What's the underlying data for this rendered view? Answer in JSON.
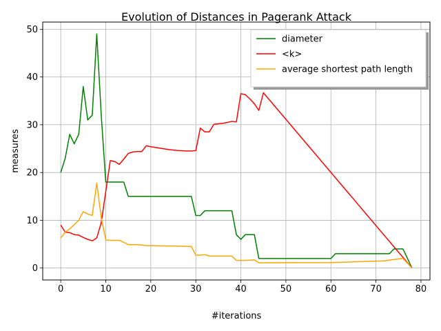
{
  "chart_data": {
    "type": "line",
    "title": "Evolution of Distances in Pagerank Attack",
    "xlabel": "#iterations",
    "ylabel": "measures",
    "xlim": [
      -4,
      82
    ],
    "ylim": [
      -2.5,
      51.5
    ],
    "xticks": [
      0,
      10,
      20,
      30,
      40,
      50,
      60,
      70,
      80
    ],
    "yticks": [
      0,
      10,
      20,
      30,
      40,
      50
    ],
    "grid": true,
    "legend_position": "upper-right",
    "series": [
      {
        "name": "diameter",
        "color": "#008000",
        "points": [
          [
            0,
            20
          ],
          [
            1,
            23
          ],
          [
            2,
            28
          ],
          [
            3,
            26
          ],
          [
            4,
            28
          ],
          [
            5,
            38
          ],
          [
            6,
            31
          ],
          [
            7,
            32
          ],
          [
            8,
            49
          ],
          [
            9,
            32
          ],
          [
            10,
            18
          ],
          [
            14,
            18
          ],
          [
            15,
            15
          ],
          [
            29,
            15
          ],
          [
            30,
            11
          ],
          [
            31,
            11
          ],
          [
            32,
            12
          ],
          [
            38,
            12
          ],
          [
            39,
            7
          ],
          [
            40,
            6
          ],
          [
            41,
            7
          ],
          [
            43,
            7
          ],
          [
            44,
            2
          ],
          [
            60,
            2
          ],
          [
            61,
            3
          ],
          [
            73,
            3
          ],
          [
            74,
            4
          ],
          [
            76,
            4
          ],
          [
            78,
            0
          ]
        ]
      },
      {
        "name": "<k>",
        "color": "#ff0000",
        "points": [
          [
            0,
            9
          ],
          [
            1,
            7.5
          ],
          [
            2,
            7.4
          ],
          [
            3,
            7
          ],
          [
            4,
            6.9
          ],
          [
            5,
            6.4
          ],
          [
            6,
            6
          ],
          [
            7,
            5.7
          ],
          [
            8,
            6.3
          ],
          [
            9,
            9.5
          ],
          [
            10,
            16
          ],
          [
            11,
            22.5
          ],
          [
            12,
            22.3
          ],
          [
            13,
            21.7
          ],
          [
            14,
            22.8
          ],
          [
            15,
            24
          ],
          [
            16,
            24.3
          ],
          [
            17,
            24.4
          ],
          [
            18,
            24.4
          ],
          [
            19,
            25.6
          ],
          [
            20,
            25.4
          ],
          [
            22,
            25.1
          ],
          [
            24,
            24.8
          ],
          [
            26,
            24.6
          ],
          [
            28,
            24.5
          ],
          [
            29,
            24.5
          ],
          [
            30,
            24.6
          ],
          [
            31,
            29.3
          ],
          [
            32,
            28.5
          ],
          [
            33,
            28.5
          ],
          [
            34,
            30.1
          ],
          [
            35,
            30.2
          ],
          [
            36,
            30.3
          ],
          [
            38,
            30.7
          ],
          [
            39,
            30.6
          ],
          [
            40,
            36.5
          ],
          [
            41,
            36.3
          ],
          [
            42,
            35.4
          ],
          [
            43,
            34.4
          ],
          [
            44,
            33
          ],
          [
            45,
            36.7
          ],
          [
            78,
            0
          ]
        ]
      },
      {
        "name": "average shortest path length",
        "color": "#ffa500",
        "points": [
          [
            0,
            6.3
          ],
          [
            1,
            7.5
          ],
          [
            2,
            8.2
          ],
          [
            3,
            9.1
          ],
          [
            4,
            10
          ],
          [
            5,
            11.8
          ],
          [
            6,
            11.3
          ],
          [
            7,
            11
          ],
          [
            8,
            17.8
          ],
          [
            9,
            10.5
          ],
          [
            10,
            5.9
          ],
          [
            11,
            5.8
          ],
          [
            13,
            5.8
          ],
          [
            14,
            5.4
          ],
          [
            15,
            4.9
          ],
          [
            17,
            4.9
          ],
          [
            19,
            4.7
          ],
          [
            25,
            4.6
          ],
          [
            29,
            4.5
          ],
          [
            30,
            2.7
          ],
          [
            31,
            2.7
          ],
          [
            32,
            2.8
          ],
          [
            33,
            2.5
          ],
          [
            38,
            2.5
          ],
          [
            39,
            1.6
          ],
          [
            41,
            1.6
          ],
          [
            43,
            1.7
          ],
          [
            44,
            1.1
          ],
          [
            60,
            1.15
          ],
          [
            72,
            1.5
          ],
          [
            74,
            1.8
          ],
          [
            76,
            2
          ],
          [
            78,
            0
          ]
        ]
      }
    ]
  }
}
